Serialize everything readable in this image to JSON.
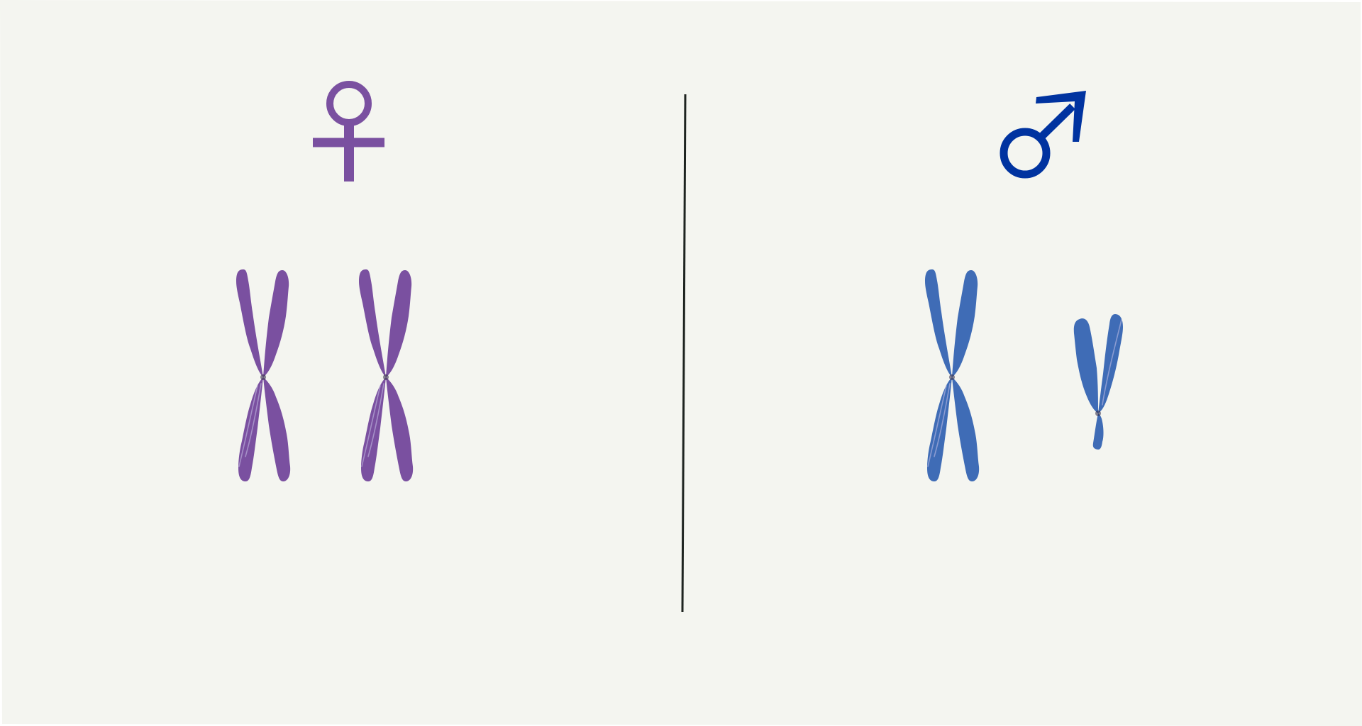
{
  "background_color": "#f4f5f0",
  "divider_color": "#1e2420",
  "female": {
    "symbol_icon": "female-venus-icon",
    "color": "#7a50a0",
    "chromosomes": [
      {
        "type": "X",
        "icon": "x-chromosome-icon"
      },
      {
        "type": "X",
        "icon": "x-chromosome-icon"
      }
    ]
  },
  "male": {
    "symbol_icon": "male-mars-icon",
    "symbol_color": "#0033a0",
    "color": "#3f6cb6",
    "chromosomes": [
      {
        "type": "X",
        "icon": "x-chromosome-icon"
      },
      {
        "type": "Y",
        "icon": "y-chromosome-icon"
      }
    ]
  }
}
